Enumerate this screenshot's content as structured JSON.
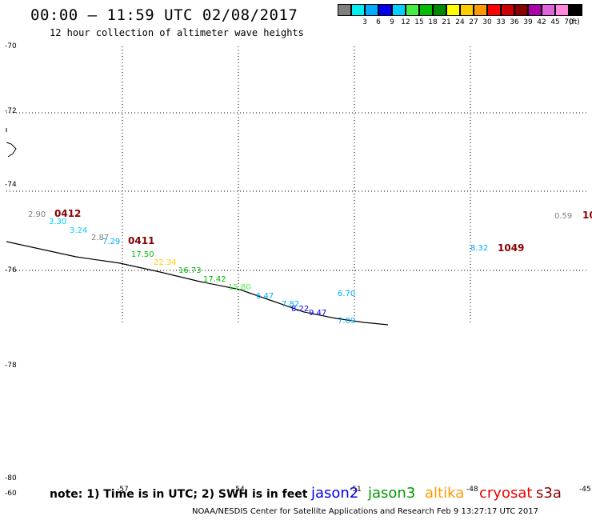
{
  "header": {
    "title": "00:00 — 11:59 UTC 02/08/2017",
    "subtitle": "12 hour collection of altimeter wave heights"
  },
  "legend": {
    "unit": "(ft)",
    "items": [
      {
        "color": "#808080",
        "label": ""
      },
      {
        "color": "#00eeee",
        "label": "3"
      },
      {
        "color": "#00aaff",
        "label": "6"
      },
      {
        "color": "#0000ee",
        "label": "9"
      },
      {
        "color": "#00d0ff",
        "label": "12"
      },
      {
        "color": "#44ee44",
        "label": "15"
      },
      {
        "color": "#00bb00",
        "label": "18"
      },
      {
        "color": "#008800",
        "label": "21"
      },
      {
        "color": "#ffff00",
        "label": "24"
      },
      {
        "color": "#ffcc00",
        "label": "27"
      },
      {
        "color": "#ff9900",
        "label": "30"
      },
      {
        "color": "#ff0000",
        "label": "33"
      },
      {
        "color": "#cc0000",
        "label": "36"
      },
      {
        "color": "#880000",
        "label": "39"
      },
      {
        "color": "#aa00aa",
        "label": "42"
      },
      {
        "color": "#dd66dd",
        "label": "45"
      },
      {
        "color": "#ff88dd",
        "label": "70"
      },
      {
        "color": "#000000",
        "label": ""
      }
    ]
  },
  "map": {
    "lat_labels": [
      "-70",
      "-72",
      "-74",
      "-76",
      "-78",
      "-80"
    ],
    "bottom_lat_label": "-60",
    "lon_labels": [
      "-57",
      "-54",
      "-51",
      "-48",
      "-45"
    ],
    "measurements": [
      {
        "text": "2.90",
        "color": "#808080"
      },
      {
        "text": "3.30",
        "color": "#00d0ff"
      },
      {
        "text": "3.24",
        "color": "#00d0ff"
      },
      {
        "text": "2.87",
        "color": "#808080"
      },
      {
        "text": "7.29",
        "color": "#00aaff"
      },
      {
        "text": "17.50",
        "color": "#00bb00"
      },
      {
        "text": "22.34",
        "color": "#ffcc00"
      },
      {
        "text": "16.73",
        "color": "#00bb00"
      },
      {
        "text": "17.42",
        "color": "#00bb00"
      },
      {
        "text": "15.80",
        "color": "#44ee44"
      },
      {
        "text": "6.47",
        "color": "#00aaff"
      },
      {
        "text": "7.82",
        "color": "#00aaff"
      },
      {
        "text": "8.22",
        "color": "#0000ee"
      },
      {
        "text": "9.47",
        "color": "#0000ee"
      },
      {
        "text": "6.70",
        "color": "#00aaff"
      },
      {
        "text": "7.09",
        "color": "#00aaff"
      },
      {
        "text": "8.32",
        "color": "#00aaff"
      },
      {
        "text": "0.59",
        "color": "#808080"
      }
    ],
    "time_labels": [
      {
        "text": "0412",
        "color": "#880000"
      },
      {
        "text": "0411",
        "color": "#880000"
      },
      {
        "text": "1049",
        "color": "#880000"
      },
      {
        "text": "10",
        "color": "#880000"
      }
    ]
  },
  "footer": {
    "note": "note: 1) Time is in UTC; 2) SWH is in feet",
    "satellites": [
      {
        "name": "jason2",
        "color": "#0000ee"
      },
      {
        "name": "jason3",
        "color": "#009900"
      },
      {
        "name": "altika",
        "color": "#ff9900"
      },
      {
        "name": "cryosat",
        "color": "#ee0000"
      },
      {
        "name": "s3a",
        "color": "#880000"
      }
    ],
    "credit": "NOAA/NESDIS Center for Satellite Applications and Research    Feb  9 13:27:17 UTC 2017"
  }
}
